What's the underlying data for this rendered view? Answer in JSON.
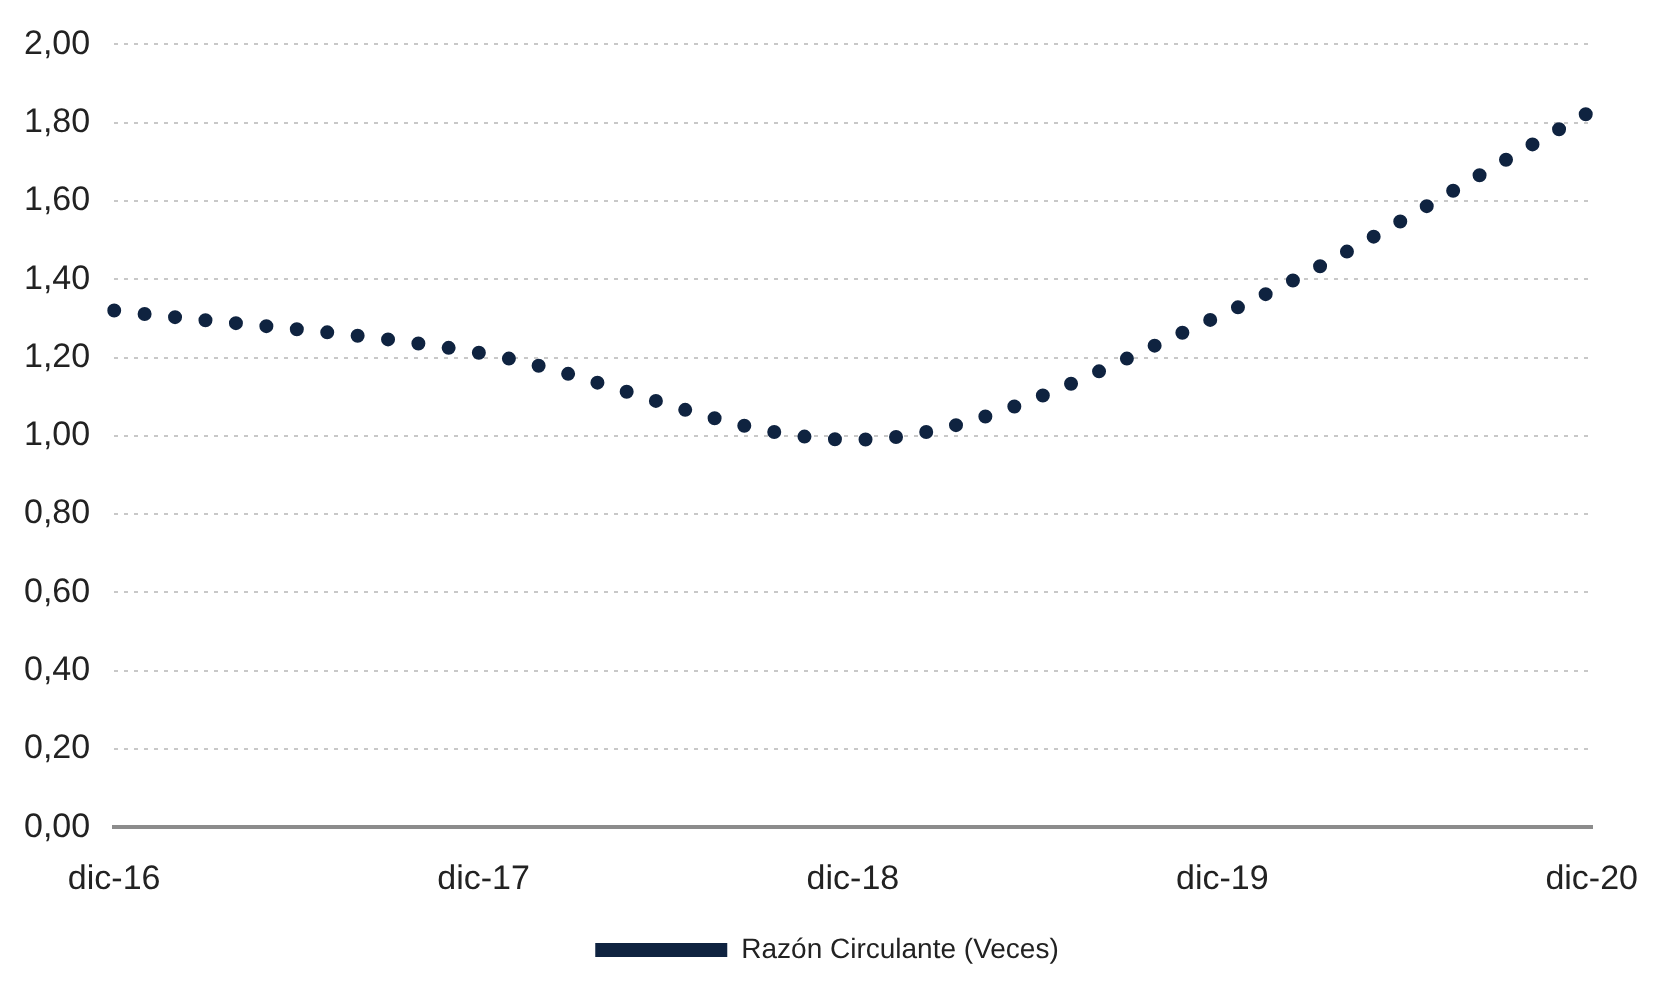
{
  "chart_data": {
    "type": "line",
    "categories": [
      "dic-16",
      "dic-17",
      "dic-18",
      "dic-19",
      "dic-20"
    ],
    "series": [
      {
        "name": "Razón Circulante (Veces)",
        "color": "#0f2340",
        "values": [
          1.32,
          1.21,
          0.99,
          1.31,
          1.83
        ]
      }
    ],
    "ylim": [
      0,
      2
    ],
    "yticks": [
      {
        "value": 0,
        "label": "0,00"
      },
      {
        "value": 0.2,
        "label": "0,20"
      },
      {
        "value": 0.4,
        "label": "0,40"
      },
      {
        "value": 0.6,
        "label": "0,60"
      },
      {
        "value": 0.8,
        "label": "0,80"
      },
      {
        "value": 1,
        "label": "1,00"
      },
      {
        "value": 1.2,
        "label": "1,20"
      },
      {
        "value": 1.4,
        "label": "1,40"
      },
      {
        "value": 1.6,
        "label": "1,60"
      },
      {
        "value": 1.8,
        "label": "1,80"
      },
      {
        "value": 2,
        "label": "2,00"
      }
    ],
    "grid": "y",
    "legend": "bottom",
    "marker": "none",
    "line_style": "dotted"
  }
}
